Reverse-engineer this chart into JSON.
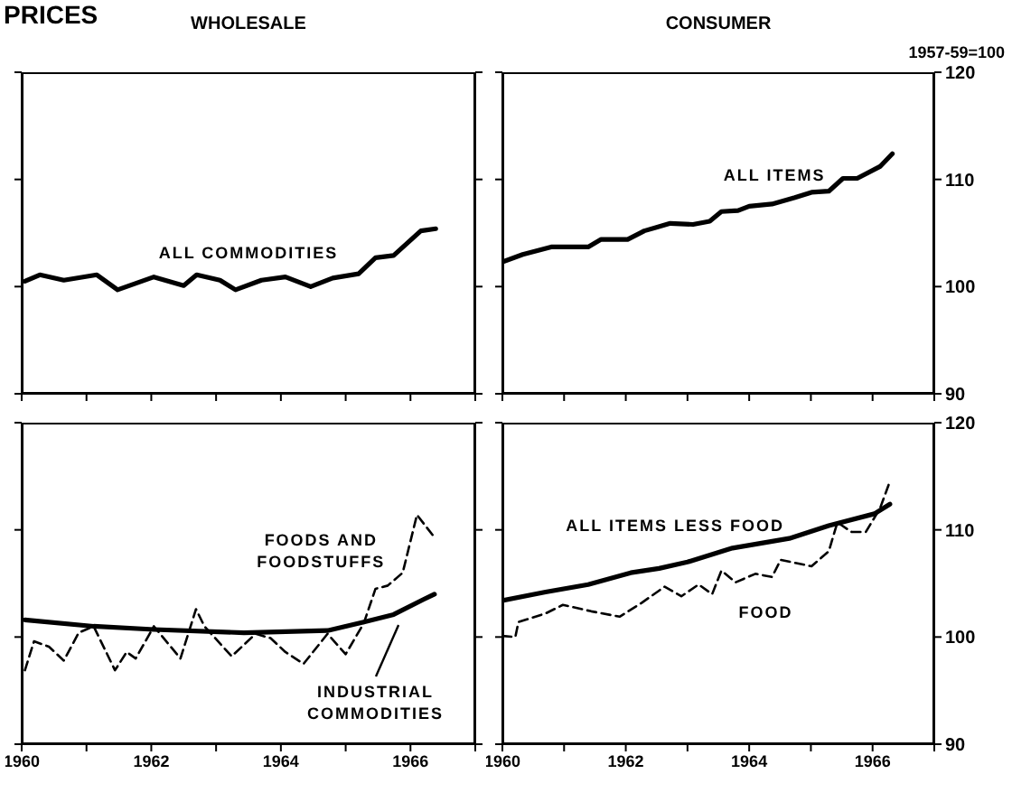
{
  "chart_data": [
    {
      "type": "line",
      "title": "PRICES",
      "subtitle": "WHOLESALE",
      "xlim": [
        1960,
        1967
      ],
      "xticks": [
        {
          "value": 1960,
          "label": null
        },
        {
          "value": 1961,
          "label": null
        },
        {
          "value": 1962,
          "label": null
        },
        {
          "value": 1963,
          "label": null
        },
        {
          "value": 1964,
          "label": null
        },
        {
          "value": 1965,
          "label": null
        },
        {
          "value": 1966,
          "label": null
        },
        {
          "value": 1967,
          "label": null
        }
      ],
      "ylim": [
        90,
        120
      ],
      "yticks": [
        90,
        100,
        110,
        120
      ],
      "tick_labels": false,
      "series": [
        {
          "name": "ALL COMMODITIES",
          "color": "#000000",
          "line_style": "solid",
          "x": [
            1960.05,
            1960.28,
            1960.65,
            1961.16,
            1961.48,
            1962.04,
            1962.5,
            1962.7,
            1963.06,
            1963.3,
            1963.7,
            1964.07,
            1964.46,
            1964.8,
            1965.2,
            1965.46,
            1965.74,
            1966.16,
            1966.39
          ],
          "values": [
            100.5,
            101.1,
            100.6,
            101.1,
            99.7,
            100.9,
            100.1,
            101.1,
            100.6,
            99.7,
            100.6,
            100.9,
            100.0,
            100.8,
            101.2,
            102.7,
            102.9,
            105.2,
            105.4
          ]
        }
      ]
    },
    {
      "type": "line",
      "title": "CONSUMER",
      "ylabel": "1957-59=100",
      "xlim": [
        1960,
        1967
      ],
      "xticks": [
        {
          "value": 1960,
          "label": null
        },
        {
          "value": 1961,
          "label": null
        },
        {
          "value": 1962,
          "label": null
        },
        {
          "value": 1963,
          "label": null
        },
        {
          "value": 1964,
          "label": null
        },
        {
          "value": 1965,
          "label": null
        },
        {
          "value": 1966,
          "label": null
        },
        {
          "value": 1967,
          "label": null
        }
      ],
      "ylim": [
        90,
        120
      ],
      "yticks": [
        90,
        100,
        110,
        120
      ],
      "tick_labels": "y",
      "series": [
        {
          "name": "ALL ITEMS",
          "color": "#000000",
          "line_style": "solid",
          "x": [
            1960.0,
            1960.33,
            1960.79,
            1961.39,
            1961.6,
            1962.03,
            1962.3,
            1962.72,
            1963.09,
            1963.36,
            1963.55,
            1963.82,
            1964.0,
            1964.37,
            1964.74,
            1965.01,
            1965.29,
            1965.52,
            1965.75,
            1966.12,
            1966.32
          ],
          "values": [
            102.3,
            103.0,
            103.7,
            103.7,
            104.4,
            104.4,
            105.2,
            105.9,
            105.8,
            106.1,
            107.0,
            107.1,
            107.5,
            107.7,
            108.3,
            108.8,
            108.9,
            110.1,
            110.1,
            111.2,
            112.4
          ]
        }
      ]
    },
    {
      "type": "line",
      "xlim": [
        1960,
        1967
      ],
      "xticks": [
        {
          "value": 1960,
          "label": "1960"
        },
        {
          "value": 1961,
          "label": null
        },
        {
          "value": 1962,
          "label": "1962"
        },
        {
          "value": 1963,
          "label": null
        },
        {
          "value": 1964,
          "label": "1964"
        },
        {
          "value": 1965,
          "label": null
        },
        {
          "value": 1966,
          "label": "1966"
        },
        {
          "value": 1967,
          "label": null
        }
      ],
      "ylim": [
        90,
        120
      ],
      "yticks": [
        90,
        100,
        110,
        120
      ],
      "tick_labels": "x",
      "series": [
        {
          "name": "INDUSTRIAL COMMODITIES",
          "color": "#000000",
          "line_style": "solid",
          "x": [
            1960.05,
            1961.11,
            1962.04,
            1963.43,
            1964.72,
            1965.28,
            1965.74,
            1966.2,
            1966.37
          ],
          "values": [
            101.6,
            101.0,
            100.7,
            100.4,
            100.6,
            101.4,
            102.1,
            103.5,
            104.0
          ]
        },
        {
          "name": "FOODS AND FOODSTUFFS",
          "color": "#000000",
          "line_style": "dashed",
          "x": [
            1960.05,
            1960.19,
            1960.42,
            1960.65,
            1960.88,
            1961.11,
            1961.44,
            1961.62,
            1961.76,
            1962.04,
            1962.45,
            1962.69,
            1962.82,
            1963.24,
            1963.61,
            1963.84,
            1964.07,
            1964.35,
            1964.72,
            1965.0,
            1965.28,
            1965.46,
            1965.65,
            1965.88,
            1966.1,
            1966.37
          ],
          "values": [
            96.9,
            99.6,
            99.1,
            97.8,
            100.4,
            101.0,
            96.9,
            98.6,
            98.0,
            101.0,
            98.0,
            102.6,
            101.0,
            98.2,
            100.3,
            99.9,
            98.6,
            97.5,
            100.3,
            98.4,
            101.3,
            104.5,
            104.8,
            106.0,
            111.4,
            109.3
          ]
        }
      ]
    },
    {
      "type": "line",
      "xlim": [
        1960,
        1967
      ],
      "xticks": [
        {
          "value": 1960,
          "label": "1960"
        },
        {
          "value": 1961,
          "label": null
        },
        {
          "value": 1962,
          "label": "1962"
        },
        {
          "value": 1963,
          "label": null
        },
        {
          "value": 1964,
          "label": "1964"
        },
        {
          "value": 1965,
          "label": null
        },
        {
          "value": 1966,
          "label": "1966"
        },
        {
          "value": 1967,
          "label": null
        }
      ],
      "ylim": [
        90,
        120
      ],
      "yticks": [
        90,
        100,
        110,
        120
      ],
      "series": [
        {
          "name": "ALL ITEMS LESS FOOD",
          "color": "#000000",
          "line_style": "solid",
          "x": [
            1960.0,
            1960.7,
            1961.39,
            1962.08,
            1962.54,
            1963.0,
            1963.73,
            1964.65,
            1965.29,
            1966.03,
            1966.28
          ],
          "values": [
            103.4,
            104.2,
            104.9,
            106.0,
            106.4,
            107.0,
            108.3,
            109.2,
            110.4,
            111.5,
            112.4
          ]
        },
        {
          "name": "FOOD",
          "color": "#000000",
          "line_style": "dashed",
          "x": [
            1960.0,
            1960.21,
            1960.26,
            1960.7,
            1960.98,
            1961.44,
            1961.9,
            1962.26,
            1962.63,
            1962.9,
            1963.18,
            1963.4,
            1963.55,
            1963.78,
            1964.1,
            1964.37,
            1964.51,
            1965.01,
            1965.29,
            1965.43,
            1965.66,
            1965.89,
            1966.12,
            1966.26
          ],
          "values": [
            100.1,
            100.0,
            101.4,
            102.2,
            103.0,
            102.4,
            101.9,
            103.2,
            104.7,
            103.8,
            104.9,
            104.0,
            106.2,
            105.1,
            105.9,
            105.6,
            107.2,
            106.6,
            108.0,
            110.7,
            109.8,
            109.8,
            112.0,
            114.2
          ]
        }
      ]
    }
  ]
}
